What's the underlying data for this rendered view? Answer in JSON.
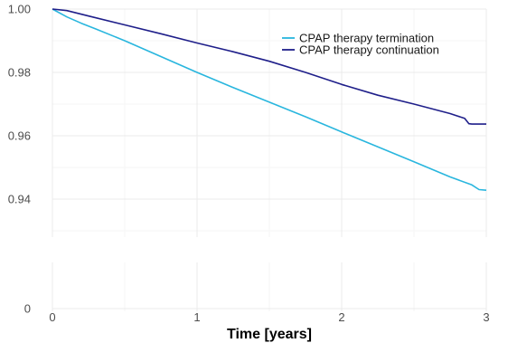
{
  "chart_data": {
    "type": "line",
    "title": "",
    "xlabel": "Time [years]",
    "ylabel": "",
    "axis_break": true,
    "xlim": [
      0,
      3
    ],
    "ylim_upper_panel": [
      0.928,
      1.0
    ],
    "ylim_lower_panel": [
      0,
      0.001
    ],
    "x_ticks": [
      0,
      1,
      2,
      3
    ],
    "x_tick_labels": [
      "0",
      "1",
      "2",
      "3"
    ],
    "y_ticks_upper": [
      1.0,
      0.98,
      0.96,
      0.94
    ],
    "y_tick_labels_upper": [
      "1.00",
      "0.98",
      "0.96",
      "0.94"
    ],
    "y_ticks_lower": [
      0
    ],
    "y_tick_labels_lower": [
      "0"
    ],
    "grid": true,
    "legend_position": "top-right",
    "series": [
      {
        "name": "CPAP therapy termination",
        "color": "#29b6de",
        "x": [
          0,
          0.1,
          0.2,
          0.3,
          0.5,
          0.75,
          1.0,
          1.25,
          1.5,
          1.75,
          2.0,
          2.25,
          2.5,
          2.75,
          2.9,
          2.95,
          3.0
        ],
        "y": [
          1.0,
          0.9975,
          0.9955,
          0.9937,
          0.99,
          0.985,
          0.98,
          0.9752,
          0.9706,
          0.966,
          0.9612,
          0.9565,
          0.9518,
          0.947,
          0.9445,
          0.943,
          0.9428
        ]
      },
      {
        "name": "CPAP therapy continuation",
        "color": "#1f1f8a",
        "x": [
          0,
          0.1,
          0.25,
          0.5,
          0.75,
          1.0,
          1.25,
          1.5,
          1.75,
          2.0,
          2.25,
          2.5,
          2.75,
          2.85,
          2.88,
          2.9,
          3.0
        ],
        "y": [
          1.0,
          0.9995,
          0.9978,
          0.995,
          0.9922,
          0.9893,
          0.9865,
          0.9835,
          0.98,
          0.9762,
          0.9728,
          0.97,
          0.967,
          0.9655,
          0.9638,
          0.9637,
          0.9637
        ]
      }
    ]
  }
}
